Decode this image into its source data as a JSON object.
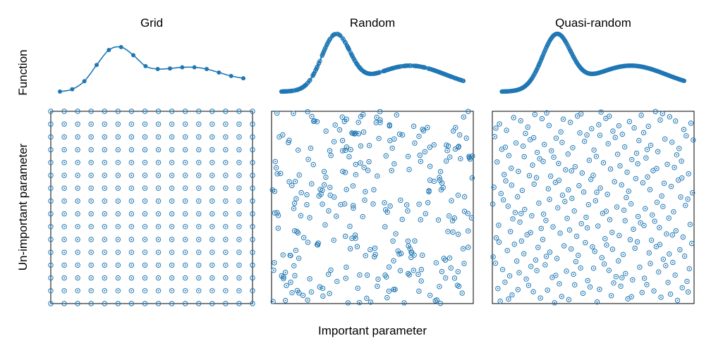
{
  "figure": {
    "xlabel": "Important parameter",
    "ylabel_top": "Function",
    "ylabel_bottom": "Un-important parameter"
  },
  "colors": {
    "accent": "#1f77b4"
  },
  "chart_data": [
    {
      "type": "line",
      "panel": "grid-function",
      "title": "Grid",
      "x": [
        0,
        0.0667,
        0.1333,
        0.2,
        0.2667,
        0.3333,
        0.4,
        0.4667,
        0.5333,
        0.6,
        0.6667,
        0.7333,
        0.8,
        0.8667,
        0.9333,
        1.0
      ],
      "y": [
        0.0,
        0.04,
        0.18,
        0.46,
        0.72,
        0.77,
        0.63,
        0.44,
        0.39,
        0.4,
        0.42,
        0.42,
        0.39,
        0.33,
        0.27,
        0.23
      ],
      "markers": true
    },
    {
      "type": "scatter",
      "panel": "random-function",
      "title": "Random",
      "note": "function evaluated at ~300 random important-parameter values (dense markers along the curve)"
    },
    {
      "type": "scatter",
      "panel": "quasi-random-function",
      "title": "Quasi-random",
      "note": "function evaluated at ~300 quasi-random important-parameter values (dense markers along the curve)"
    },
    {
      "type": "scatter",
      "panel": "grid-samples",
      "xlabel": "",
      "ylabel": "",
      "grid_points": 16,
      "xlim": [
        0,
        1
      ],
      "ylim": [
        0,
        1
      ]
    },
    {
      "type": "scatter",
      "panel": "random-samples",
      "n_points": 300,
      "xlim": [
        0,
        1
      ],
      "ylim": [
        0,
        1
      ]
    },
    {
      "type": "scatter",
      "panel": "quasi-random-samples",
      "n_points": 300,
      "xlim": [
        0,
        1
      ],
      "ylim": [
        0,
        1
      ]
    }
  ]
}
